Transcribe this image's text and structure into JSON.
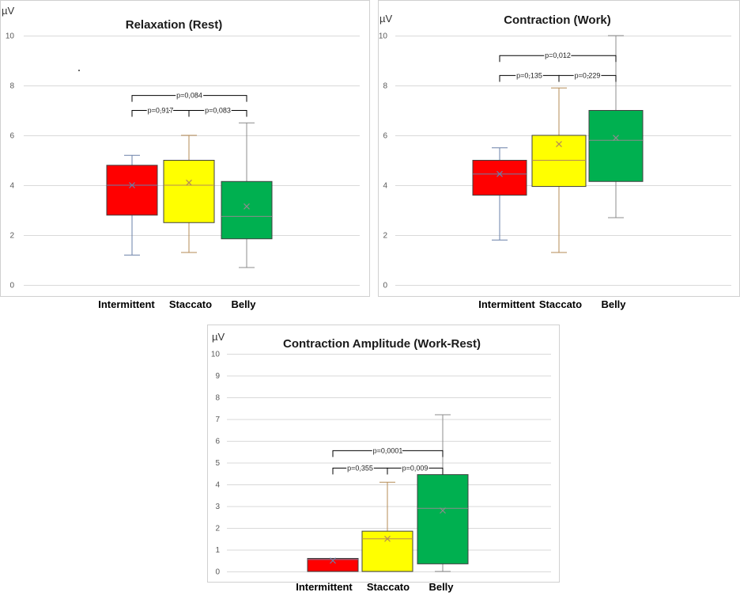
{
  "chart_data": [
    {
      "type": "box",
      "title": "Relaxation (Rest)",
      "ylabel": "µV",
      "ylim": [
        0,
        10
      ],
      "yticks": [
        0,
        2,
        4,
        6,
        8,
        10
      ],
      "yticklabels": [
        "0",
        "2",
        "4",
        "6",
        "8",
        "10"
      ],
      "grid": true,
      "categories": [
        "Intermittent",
        "Staccato",
        "Belly"
      ],
      "series": [
        {
          "min": 1.2,
          "q1": 2.8,
          "median": 4.0,
          "q3": 4.8,
          "max": 5.2,
          "mean": 4.0,
          "color": "#ff0000",
          "whisker_color": "#6a80a8"
        },
        {
          "min": 1.3,
          "q1": 2.5,
          "median": 4.0,
          "q3": 5.0,
          "max": 6.0,
          "mean": 4.1,
          "color": "#ffff00",
          "whisker_color": "#b58b56"
        },
        {
          "min": 0.7,
          "q1": 1.85,
          "median": 2.75,
          "q3": 4.15,
          "max": 6.5,
          "mean": 3.15,
          "color": "#00b050",
          "whisker_color": "#8c8c8c"
        }
      ],
      "annotations": [
        {
          "from": 0,
          "to": 2,
          "y": 7.6,
          "text": "p=0,084"
        },
        {
          "from": 0,
          "to": 1,
          "y": 7.0,
          "text": "p=0,917"
        },
        {
          "from": 1,
          "to": 2,
          "y": 7.0,
          "text": "p=0,083"
        }
      ]
    },
    {
      "type": "box",
      "title": "Contraction (Work)",
      "ylabel": "µV",
      "ylim": [
        0,
        10
      ],
      "yticks": [
        0,
        2,
        4,
        6,
        8,
        10
      ],
      "yticklabels": [
        "0",
        "2",
        "4",
        "6",
        "8",
        "10"
      ],
      "grid": true,
      "categories": [
        "Intermittent",
        "Staccato",
        "Belly"
      ],
      "series": [
        {
          "min": 1.8,
          "q1": 3.6,
          "median": 4.45,
          "q3": 5.0,
          "max": 5.5,
          "mean": 4.45,
          "color": "#ff0000",
          "whisker_color": "#6a80a8"
        },
        {
          "min": 1.3,
          "q1": 3.95,
          "median": 5.0,
          "q3": 6.0,
          "max": 7.9,
          "mean": 5.65,
          "color": "#ffff00",
          "whisker_color": "#b58b56"
        },
        {
          "min": 2.7,
          "q1": 4.15,
          "median": 5.8,
          "q3": 7.0,
          "max": 10.0,
          "mean": 5.9,
          "color": "#00b050",
          "whisker_color": "#8c8c8c"
        }
      ],
      "annotations": [
        {
          "from": 0,
          "to": 2,
          "y": 9.2,
          "text": "p=0,012"
        },
        {
          "from": 0,
          "to": 1,
          "y": 8.4,
          "text": "p=0,135"
        },
        {
          "from": 1,
          "to": 2,
          "y": 8.4,
          "text": "p=0,229"
        }
      ]
    },
    {
      "type": "box",
      "title": "Contraction Amplitude (Work-Rest)",
      "ylabel": "µV",
      "ylim": [
        0,
        10
      ],
      "yticks": [
        0,
        1,
        2,
        3,
        4,
        5,
        6,
        7,
        8,
        9,
        10
      ],
      "yticklabels": [
        "0",
        "1",
        "2",
        "3",
        "4",
        "5",
        "6",
        "7",
        "8",
        "9",
        "10"
      ],
      "grid": true,
      "categories": [
        "Intermittent",
        "Staccato",
        "Belly"
      ],
      "series": [
        {
          "min": 0.0,
          "q1": 0.0,
          "median": 0.55,
          "q3": 0.6,
          "max": 0.6,
          "mean": 0.5,
          "color": "#ff0000",
          "whisker_color": "#6a80a8"
        },
        {
          "min": 0.0,
          "q1": 0.0,
          "median": 1.5,
          "q3": 1.85,
          "max": 4.1,
          "mean": 1.5,
          "color": "#ffff00",
          "whisker_color": "#b58b56"
        },
        {
          "min": 0.0,
          "q1": 0.35,
          "median": 2.9,
          "q3": 4.45,
          "max": 7.2,
          "mean": 2.8,
          "color": "#00b050",
          "whisker_color": "#8c8c8c"
        }
      ],
      "annotations": [
        {
          "from": 0,
          "to": 2,
          "y": 5.55,
          "text": "p=0,0001"
        },
        {
          "from": 0,
          "to": 1,
          "y": 4.75,
          "text": "p=0,355"
        },
        {
          "from": 1,
          "to": 2,
          "y": 4.75,
          "text": "p=0,009"
        }
      ]
    }
  ]
}
